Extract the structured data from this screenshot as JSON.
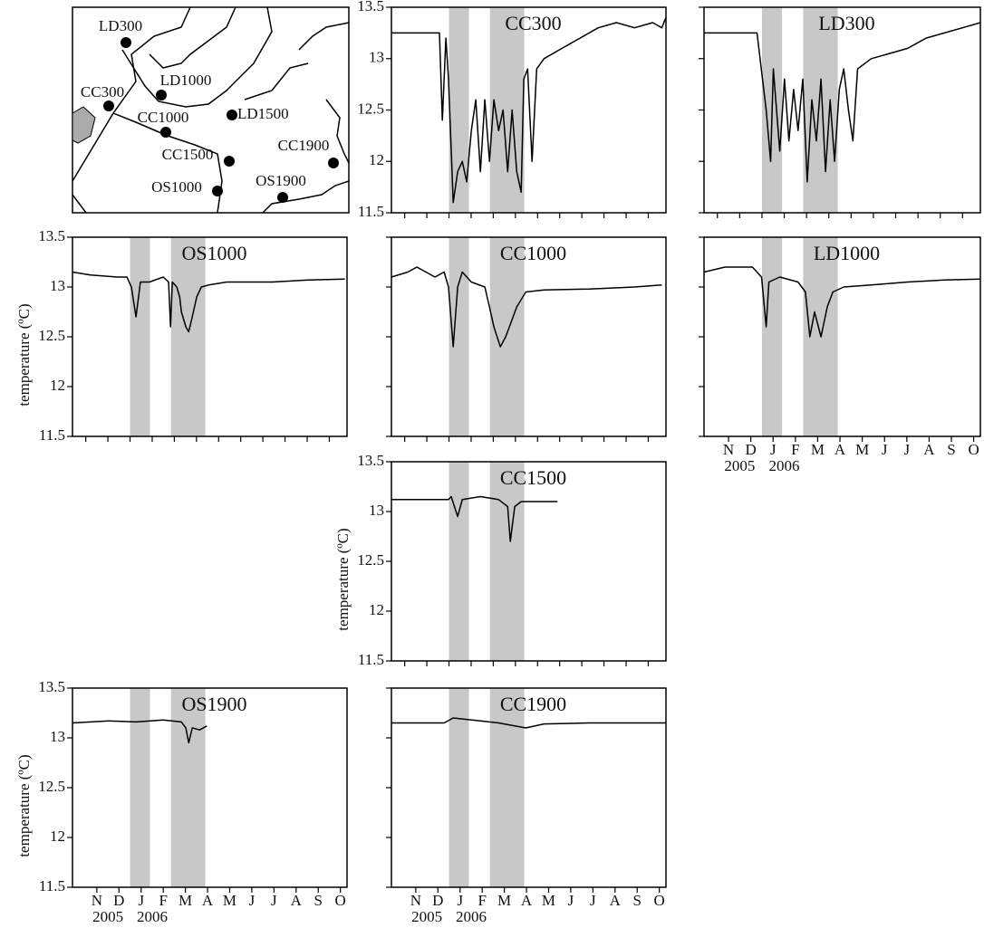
{
  "map": {
    "stations": [
      "LD300",
      "LD1000",
      "CC300",
      "LD1500",
      "CC1000",
      "CC1500",
      "CC1900",
      "OS1000",
      "OS1900"
    ]
  },
  "chart_data": [
    {
      "type": "line",
      "title": "CC300",
      "color": "#000000",
      "shade_color": "#c8c8c8",
      "shaded_spans": [
        [
          3.0,
          3.9
        ],
        [
          4.85,
          6.4
        ]
      ],
      "xlim": [
        0.4,
        12.8
      ],
      "xticks": [
        1,
        2,
        3,
        4,
        5,
        6,
        7,
        8,
        9,
        10,
        11,
        12
      ],
      "xtick_labels": false,
      "ylim": [
        11.5,
        13.5
      ],
      "yticks": [
        11.5,
        12,
        12.5,
        13,
        13.5
      ],
      "ytick_labels": true,
      "x": [
        0.4,
        2.57,
        2.7,
        2.86,
        2.98,
        3.19,
        3.39,
        3.6,
        3.8,
        4.01,
        4.21,
        4.42,
        4.62,
        4.83,
        5.03,
        5.24,
        5.44,
        5.65,
        5.85,
        6.06,
        6.26,
        6.38,
        6.55,
        6.75,
        6.96,
        7.29,
        8.1,
        8.92,
        9.74,
        10.56,
        11.38,
        12.2,
        12.61,
        12.8
      ],
      "values": [
        13.25,
        13.25,
        12.4,
        13.2,
        12.8,
        11.6,
        11.9,
        12.0,
        11.8,
        12.3,
        12.6,
        11.9,
        12.6,
        12.0,
        12.6,
        12.3,
        12.5,
        11.9,
        12.5,
        11.9,
        11.7,
        12.8,
        12.9,
        12.0,
        12.9,
        13.0,
        13.1,
        13.2,
        13.3,
        13.35,
        13.3,
        13.35,
        13.3,
        13.4
      ]
    },
    {
      "type": "line",
      "title": "LD300",
      "color": "#000000",
      "shade_color": "#c8c8c8",
      "shaded_spans": [
        [
          3.0,
          3.9
        ],
        [
          4.85,
          6.4
        ]
      ],
      "xlim": [
        0.4,
        12.8
      ],
      "xticks": [
        1,
        2,
        3,
        4,
        5,
        6,
        7,
        8,
        9,
        10,
        11,
        12
      ],
      "xtick_labels": false,
      "ylim": [
        11.5,
        13.5
      ],
      "yticks": [
        11.5,
        12,
        12.5,
        13,
        13.5
      ],
      "ytick_labels": false,
      "x": [
        0.4,
        2.78,
        3.19,
        3.39,
        3.51,
        3.8,
        4.01,
        4.21,
        4.42,
        4.62,
        4.83,
        5.03,
        5.24,
        5.44,
        5.65,
        5.85,
        6.06,
        6.26,
        6.47,
        6.67,
        6.88,
        7.08,
        7.29,
        7.9,
        8.72,
        9.54,
        10.36,
        11.18,
        12.0,
        12.8
      ],
      "values": [
        13.25,
        13.25,
        12.5,
        12.0,
        12.9,
        12.1,
        12.8,
        12.2,
        12.7,
        12.3,
        12.8,
        11.8,
        12.6,
        12.2,
        12.8,
        11.9,
        12.6,
        12.0,
        12.7,
        12.9,
        12.5,
        12.2,
        12.9,
        13.0,
        13.05,
        13.1,
        13.2,
        13.25,
        13.3,
        13.35
      ]
    },
    {
      "type": "line",
      "title": "OS1000",
      "ylabel": "temperature (ºC)",
      "color": "#000000",
      "shade_color": "#c8c8c8",
      "shaded_spans": [
        [
          3.0,
          3.9
        ],
        [
          4.85,
          6.4
        ]
      ],
      "xlim": [
        0.4,
        12.8
      ],
      "xticks": [
        1,
        2,
        3,
        4,
        5,
        6,
        7,
        8,
        9,
        10,
        11,
        12
      ],
      "xtick_labels": false,
      "ylim": [
        11.5,
        13.5
      ],
      "yticks": [
        11.5,
        12,
        12.5,
        13,
        13.5
      ],
      "ytick_labels": true,
      "x": [
        0.4,
        1.22,
        2.45,
        2.86,
        3.06,
        3.27,
        3.47,
        3.88,
        4.5,
        4.74,
        4.83,
        4.91,
        5.11,
        5.24,
        5.32,
        5.52,
        5.65,
        5.81,
        6.01,
        6.22,
        6.55,
        7.37,
        9.42,
        11.06,
        12.7
      ],
      "values": [
        13.15,
        13.12,
        13.1,
        13.1,
        13.0,
        12.7,
        13.05,
        13.05,
        13.1,
        13.05,
        12.6,
        13.05,
        13.0,
        12.9,
        12.75,
        12.6,
        12.55,
        12.7,
        12.9,
        13.0,
        13.02,
        13.05,
        13.05,
        13.07,
        13.08
      ]
    },
    {
      "type": "line",
      "title": "CC1000",
      "color": "#000000",
      "shade_color": "#c8c8c8",
      "shaded_spans": [
        [
          3.0,
          3.9
        ],
        [
          4.85,
          6.4
        ]
      ],
      "xlim": [
        0.4,
        12.8
      ],
      "xticks": [
        1,
        2,
        3,
        4,
        5,
        6,
        7,
        8,
        9,
        10,
        11,
        12
      ],
      "xtick_labels": false,
      "ylim": [
        11.5,
        13.5
      ],
      "yticks": [
        11.5,
        12,
        12.5,
        13,
        13.5
      ],
      "ytick_labels": false,
      "x": [
        0.4,
        1.14,
        1.55,
        2.37,
        2.78,
        2.98,
        3.19,
        3.39,
        3.6,
        4.01,
        4.62,
        4.83,
        5.03,
        5.32,
        5.56,
        5.73,
        6.06,
        6.47,
        7.29,
        9.34,
        11.38,
        12.61
      ],
      "values": [
        13.1,
        13.15,
        13.2,
        13.1,
        13.15,
        13.0,
        12.4,
        13.0,
        13.15,
        13.05,
        13.0,
        12.8,
        12.6,
        12.4,
        12.5,
        12.6,
        12.8,
        12.95,
        12.97,
        12.98,
        13.0,
        13.02
      ]
    },
    {
      "type": "line",
      "title": "LD1000",
      "color": "#000000",
      "shade_color": "#c8c8c8",
      "shaded_spans": [
        [
          3.0,
          3.9
        ],
        [
          4.85,
          6.4
        ]
      ],
      "xlim": [
        0.4,
        12.8
      ],
      "xtick_labels": true,
      "xticks": [
        {
          "value": 1.5,
          "label": "N"
        },
        {
          "value": 2.5,
          "label": "D"
        },
        {
          "value": 3.5,
          "label": "J"
        },
        {
          "value": 4.5,
          "label": "F"
        },
        {
          "value": 5.5,
          "label": "M"
        },
        {
          "value": 6.5,
          "label": "A"
        },
        {
          "value": 7.5,
          "label": "M"
        },
        {
          "value": 8.5,
          "label": "J"
        },
        {
          "value": 9.5,
          "label": "J"
        },
        {
          "value": 10.5,
          "label": "A"
        },
        {
          "value": 11.5,
          "label": "S"
        },
        {
          "value": 12.5,
          "label": "O"
        }
      ],
      "year_labels": [
        {
          "value": 2.0,
          "label": "2005"
        },
        {
          "value": 4.0,
          "label": "2006"
        }
      ],
      "ylim": [
        11.5,
        13.5
      ],
      "yticks": [
        11.5,
        12,
        12.5,
        13,
        13.5
      ],
      "ytick_labels": false,
      "x": [
        0.4,
        1.34,
        2.57,
        2.98,
        3.19,
        3.31,
        3.8,
        4.62,
        4.95,
        5.15,
        5.36,
        5.65,
        5.93,
        6.18,
        6.67,
        7.9,
        9.54,
        11.18,
        12.8
      ],
      "values": [
        13.15,
        13.2,
        13.2,
        13.1,
        12.6,
        13.05,
        13.1,
        13.05,
        12.95,
        12.5,
        12.75,
        12.5,
        12.8,
        12.95,
        13.0,
        13.02,
        13.05,
        13.07,
        13.08
      ]
    },
    {
      "type": "line",
      "title": "CC1500",
      "ylabel": "temperature (ºC)",
      "color": "#000000",
      "shade_color": "#c8c8c8",
      "shaded_spans": [
        [
          3.0,
          3.9
        ],
        [
          4.85,
          6.4
        ]
      ],
      "xlim": [
        0.4,
        12.8
      ],
      "xticks": [
        1,
        2,
        3,
        4,
        5,
        6,
        7,
        8,
        9,
        10,
        11,
        12
      ],
      "xtick_labels": false,
      "ylim": [
        11.5,
        13.5
      ],
      "yticks": [
        11.5,
        12,
        12.5,
        13,
        13.5
      ],
      "ytick_labels": true,
      "x": [
        0.4,
        2.98,
        3.1,
        3.39,
        3.6,
        4.42,
        5.24,
        5.65,
        5.77,
        5.97,
        6.26,
        7.9
      ],
      "values": [
        13.12,
        13.12,
        13.15,
        12.95,
        13.12,
        13.15,
        13.12,
        13.05,
        12.7,
        13.05,
        13.1,
        13.1
      ]
    },
    {
      "type": "line",
      "title": "OS1900",
      "ylabel": "temperature (ºC)",
      "color": "#000000",
      "shade_color": "#c8c8c8",
      "shaded_spans": [
        [
          3.0,
          3.9
        ],
        [
          4.85,
          6.4
        ]
      ],
      "xlim": [
        0.4,
        12.8
      ],
      "xtick_labels": true,
      "xticks": [
        {
          "value": 1.5,
          "label": "N"
        },
        {
          "value": 2.5,
          "label": "D"
        },
        {
          "value": 3.5,
          "label": "J"
        },
        {
          "value": 4.5,
          "label": "F"
        },
        {
          "value": 5.5,
          "label": "M"
        },
        {
          "value": 6.5,
          "label": "A"
        },
        {
          "value": 7.5,
          "label": "M"
        },
        {
          "value": 8.5,
          "label": "J"
        },
        {
          "value": 9.5,
          "label": "J"
        },
        {
          "value": 10.5,
          "label": "A"
        },
        {
          "value": 11.5,
          "label": "S"
        },
        {
          "value": 12.5,
          "label": "O"
        }
      ],
      "year_labels": [
        {
          "value": 2.0,
          "label": "2005"
        },
        {
          "value": 4.0,
          "label": "2006"
        }
      ],
      "ylim": [
        11.5,
        13.5
      ],
      "yticks": [
        11.5,
        12,
        12.5,
        13,
        13.5
      ],
      "ytick_labels": true,
      "x": [
        0.4,
        2.04,
        3.27,
        4.5,
        5.32,
        5.52,
        5.65,
        5.81,
        6.14,
        6.47
      ],
      "values": [
        13.15,
        13.17,
        13.16,
        13.18,
        13.16,
        13.1,
        12.95,
        13.1,
        13.08,
        13.12
      ]
    },
    {
      "type": "line",
      "title": "CC1900",
      "color": "#000000",
      "shade_color": "#c8c8c8",
      "shaded_spans": [
        [
          3.0,
          3.9
        ],
        [
          4.85,
          6.4
        ]
      ],
      "xlim": [
        0.4,
        12.8
      ],
      "xtick_labels": true,
      "xticks": [
        {
          "value": 1.5,
          "label": "N"
        },
        {
          "value": 2.5,
          "label": "D"
        },
        {
          "value": 3.5,
          "label": "J"
        },
        {
          "value": 4.5,
          "label": "F"
        },
        {
          "value": 5.5,
          "label": "M"
        },
        {
          "value": 6.5,
          "label": "A"
        },
        {
          "value": 7.5,
          "label": "M"
        },
        {
          "value": 8.5,
          "label": "J"
        },
        {
          "value": 9.5,
          "label": "J"
        },
        {
          "value": 10.5,
          "label": "A"
        },
        {
          "value": 11.5,
          "label": "S"
        },
        {
          "value": 12.5,
          "label": "O"
        }
      ],
      "year_labels": [
        {
          "value": 2.0,
          "label": "2005"
        },
        {
          "value": 4.0,
          "label": "2006"
        }
      ],
      "ylim": [
        11.5,
        13.5
      ],
      "yticks": [
        11.5,
        12,
        12.5,
        13,
        13.5
      ],
      "ytick_labels": false,
      "x": [
        0.4,
        2.78,
        3.19,
        4.42,
        5.24,
        6.47,
        7.29,
        9.34,
        12.8
      ],
      "values": [
        13.15,
        13.15,
        13.2,
        13.17,
        13.15,
        13.1,
        13.14,
        13.15,
        13.15
      ]
    }
  ]
}
